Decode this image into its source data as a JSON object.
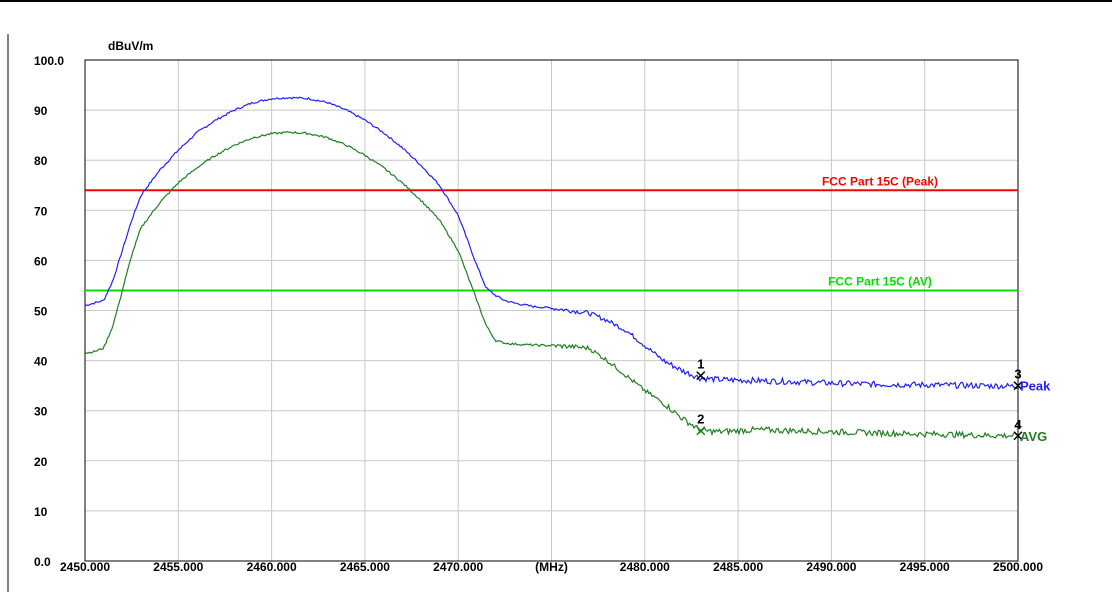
{
  "chart_data": {
    "type": "line",
    "title": "",
    "xlabel": "(MHz)",
    "ylabel": "dBuV/m",
    "xlim": [
      2450,
      2500
    ],
    "ylim": [
      0,
      100
    ],
    "x_ticks": [
      {
        "value": 2450,
        "label": "2450.000"
      },
      {
        "value": 2455,
        "label": "2455.000"
      },
      {
        "value": 2460,
        "label": "2460.000"
      },
      {
        "value": 2465,
        "label": "2465.000"
      },
      {
        "value": 2470,
        "label": "2470.000"
      },
      {
        "value": 2475,
        "label": "(MHz)"
      },
      {
        "value": 2480,
        "label": "2480.000"
      },
      {
        "value": 2485,
        "label": "2485.000"
      },
      {
        "value": 2490,
        "label": "2490.000"
      },
      {
        "value": 2495,
        "label": "2495.000"
      },
      {
        "value": 2500,
        "label": "2500.000"
      }
    ],
    "y_ticks": [
      {
        "value": 100,
        "label": "100.0"
      },
      {
        "value": 90,
        "label": "90"
      },
      {
        "value": 80,
        "label": "80"
      },
      {
        "value": 70,
        "label": "70"
      },
      {
        "value": 60,
        "label": "60"
      },
      {
        "value": 50,
        "label": "50"
      },
      {
        "value": 40,
        "label": "40"
      },
      {
        "value": 30,
        "label": "30"
      },
      {
        "value": 20,
        "label": "20"
      },
      {
        "value": 10,
        "label": "10"
      },
      {
        "value": 0,
        "label": "0.0"
      }
    ],
    "grid": true,
    "limits": [
      {
        "label": "FCC Part 15C (Peak)",
        "value": 74,
        "color": "#ff0000"
      },
      {
        "label": "FCC Part 15C (AV)",
        "value": 54,
        "color": "#00e000"
      }
    ],
    "series": [
      {
        "name": "Peak",
        "color": "#2020ff",
        "x": [
          2450,
          2450.5,
          2451,
          2451.5,
          2452,
          2452.5,
          2453,
          2454,
          2455,
          2456,
          2457,
          2458,
          2459,
          2460,
          2461,
          2462,
          2463,
          2464,
          2465,
          2466,
          2467,
          2468,
          2469,
          2470,
          2470.5,
          2471,
          2471.5,
          2472,
          2472.5,
          2473,
          2474,
          2475,
          2476,
          2477,
          2478,
          2479,
          2480,
          2481,
          2482,
          2483,
          2484,
          2486,
          2488,
          2490,
          2492,
          2494,
          2496,
          2498,
          2500
        ],
        "y": [
          51,
          51.5,
          52,
          56,
          62,
          68,
          73,
          78,
          82,
          85.5,
          88,
          90,
          91.5,
          92.3,
          92.5,
          92.3,
          91.5,
          90,
          88,
          85.5,
          82.5,
          79,
          75,
          69,
          64,
          59,
          54.5,
          53,
          52,
          51.5,
          50.8,
          50.5,
          50,
          49.5,
          48,
          46,
          43,
          40,
          38,
          36.5,
          36.2,
          36,
          35.8,
          35.5,
          35.3,
          35.2,
          35.1,
          35,
          34.9
        ]
      },
      {
        "name": "AVG",
        "color": "#208020",
        "x": [
          2450,
          2450.5,
          2451,
          2451.5,
          2452,
          2452.5,
          2453,
          2454,
          2455,
          2456,
          2457,
          2458,
          2459,
          2460,
          2461,
          2462,
          2463,
          2464,
          2465,
          2466,
          2467,
          2468,
          2469,
          2470,
          2470.5,
          2471,
          2471.5,
          2472,
          2472.5,
          2473,
          2474,
          2475,
          2476,
          2477,
          2478,
          2479,
          2480,
          2481,
          2482,
          2483,
          2484,
          2486,
          2488,
          2490,
          2492,
          2494,
          2496,
          2498,
          2500
        ],
        "y": [
          41.5,
          41.8,
          42.5,
          47,
          54,
          61,
          66.5,
          71.5,
          75.5,
          78.5,
          81,
          83,
          84.5,
          85.3,
          85.6,
          85.3,
          84.5,
          83,
          81,
          78.5,
          75.5,
          72,
          68,
          62,
          57,
          52,
          47,
          44,
          43.5,
          43.3,
          43.1,
          43,
          42.8,
          42.5,
          40,
          37,
          34,
          31.5,
          28.5,
          26,
          25.8,
          26.2,
          26,
          25.8,
          25.6,
          25.4,
          25.3,
          25.1,
          25
        ]
      }
    ],
    "markers": [
      {
        "label": "1",
        "x": 2483,
        "y": 37,
        "color": "#000000"
      },
      {
        "label": "2",
        "x": 2483,
        "y": 26,
        "color": "#208020"
      },
      {
        "label": "3",
        "x": 2500,
        "y": 35,
        "color": "#000000"
      },
      {
        "label": "4",
        "x": 2500,
        "y": 25,
        "color": "#000000"
      }
    ],
    "trace_labels": [
      {
        "text": "Peak",
        "x": 2500,
        "y": 35,
        "color": "#2020ff"
      },
      {
        "text": "AVG",
        "x": 2500,
        "y": 25,
        "color": "#208020"
      }
    ]
  }
}
